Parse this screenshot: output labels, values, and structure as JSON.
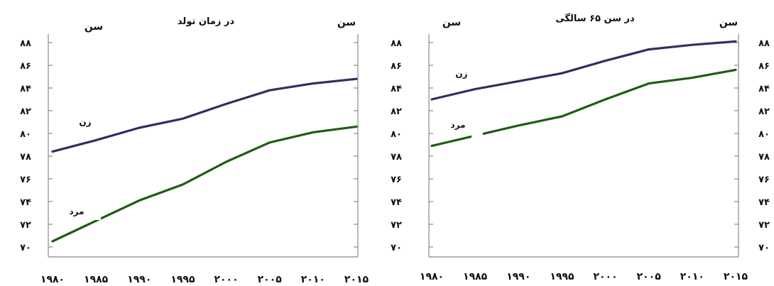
{
  "chart_data": [
    {
      "type": "line",
      "title": "در زمان تولد",
      "ylabel": "سن",
      "ylabel_right": "سن",
      "x": [
        1980,
        1985,
        1990,
        1995,
        2000,
        2005,
        2010,
        2015
      ],
      "x_tick_labels": [
        "۱۹۸۰",
        "۱۹۸۵",
        "۱۹۹۰",
        "۱۹۹۵",
        "۲۰۰۰",
        "۲۰۰۵",
        "۲۰۱۰",
        "۲۰۱۵"
      ],
      "ylim": [
        70,
        88
      ],
      "y_ticks": [
        70,
        72,
        74,
        76,
        78,
        80,
        82,
        84,
        86,
        88
      ],
      "y_tick_labels": [
        "۷۰",
        "۷۲",
        "۷۴",
        "۷۶",
        "۷۸",
        "۸۰",
        "۸۲",
        "۸۴",
        "۸۶",
        "۸۸"
      ],
      "grid": false,
      "series": [
        {
          "name": "زن",
          "color": "#3b2a5e",
          "values": [
            78.4,
            79.4,
            80.5,
            81.3,
            82.6,
            83.8,
            84.4,
            84.8
          ]
        },
        {
          "name": "مرد",
          "color": "#1e5c14",
          "values": [
            70.5,
            72.3,
            74.1,
            75.5,
            77.5,
            79.2,
            80.1,
            80.6
          ]
        }
      ]
    },
    {
      "type": "line",
      "title": "در سن ۶۵ سالگی",
      "ylabel": "سن",
      "ylabel_right": "سن",
      "x": [
        1980,
        1985,
        1990,
        1995,
        2000,
        2005,
        2010,
        2015
      ],
      "x_tick_labels": [
        "۱۹۸۰",
        "۱۹۸۵",
        "۱۹۹۰",
        "۱۹۹۵",
        "۲۰۰۰",
        "۲۰۰۵",
        "۲۰۱۰",
        "۲۰۱۵"
      ],
      "ylim": [
        70,
        88
      ],
      "y_ticks": [
        70,
        72,
        74,
        76,
        78,
        80,
        82,
        84,
        86,
        88
      ],
      "y_tick_labels_left": [
        "۷۰",
        "۷۲",
        "۷۴",
        "۷۶",
        "۷۸",
        "۸۰",
        "۸۲",
        "۸۴",
        "۸۶",
        "۸۸"
      ],
      "y_tick_labels_right": [
        "۷۰",
        "۷۲",
        "۷۴",
        "۷۶",
        "۷۸",
        "۸۰",
        "۸۲",
        "۸۴",
        "۸۶",
        "۸۸"
      ],
      "grid": false,
      "series": [
        {
          "name": "زن",
          "color": "#3b2a5e",
          "values": [
            83.0,
            83.9,
            84.6,
            85.3,
            86.4,
            87.4,
            87.8,
            88.1
          ]
        },
        {
          "name": "مرد",
          "color": "#1e5c14",
          "values": [
            78.9,
            79.8,
            80.7,
            81.5,
            83.0,
            84.4,
            84.9,
            85.6
          ]
        }
      ]
    }
  ]
}
